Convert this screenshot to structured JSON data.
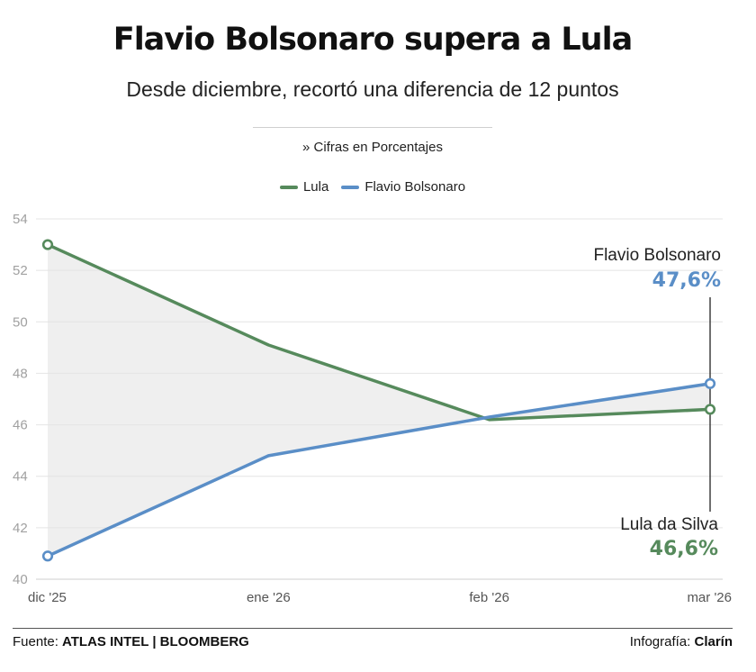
{
  "title": "Flavio Bolsonaro supera a Lula",
  "subtitle": "Desde diciembre, recortó una diferencia de 12 puntos",
  "unit_note": "» Cifras en Porcentajes",
  "footer": {
    "source_label": "Fuente:",
    "source": "ATLAS INTEL | BLOOMBERG",
    "credit_label": "Infografía:",
    "credit": "Clarín"
  },
  "colors": {
    "lula": "#568a5c",
    "flavio": "#5a8ec7",
    "gap_fill": "#efefef",
    "grid": "#e4e4e4",
    "axis_text": "#a0a0a0"
  },
  "chart_data": {
    "type": "line",
    "categories": [
      "dic '25",
      "ene '26",
      "feb '26",
      "mar '26"
    ],
    "series": [
      {
        "name": "Lula",
        "label": "Lula da Silva",
        "end_label": "46,6%",
        "color": "#568a5c",
        "values": [
          53.0,
          49.1,
          46.2,
          46.6
        ]
      },
      {
        "name": "Flavio Bolsonaro",
        "label": "Flavio Bolsonaro",
        "end_label": "47,6%",
        "color": "#5a8ec7",
        "values": [
          40.9,
          44.8,
          46.3,
          47.6
        ]
      }
    ],
    "y_ticks": [
      40,
      42,
      44,
      46,
      48,
      50,
      52,
      54
    ],
    "ylim": [
      40,
      54
    ],
    "grid": true,
    "legend": "top-center",
    "shaded_gap": true
  }
}
